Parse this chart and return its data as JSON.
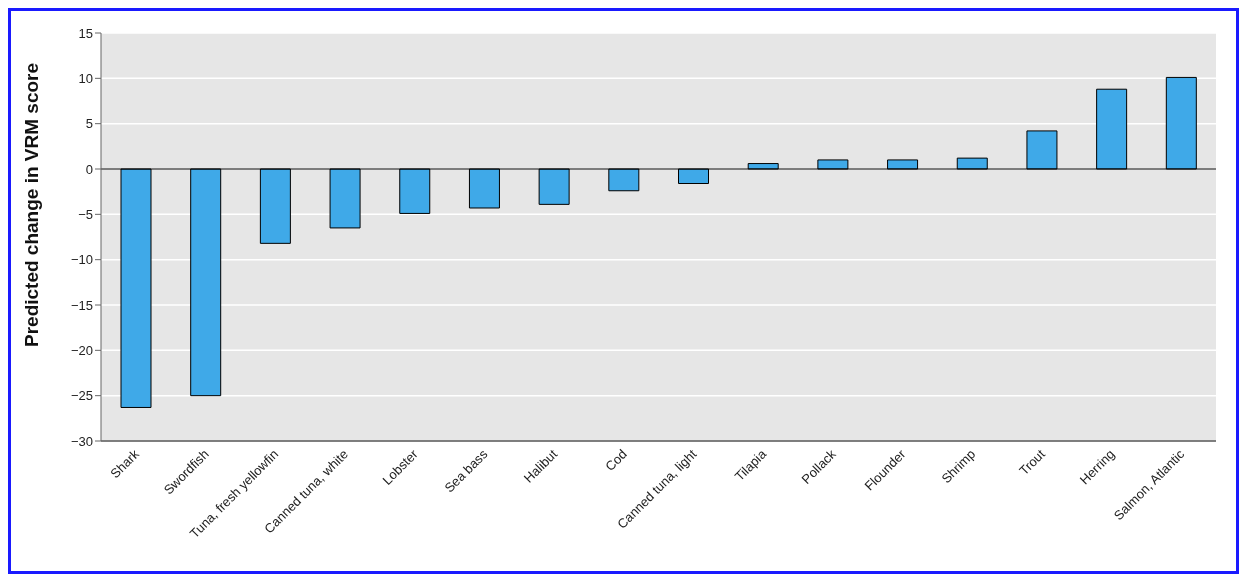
{
  "chart_data": {
    "type": "bar",
    "ylabel": "Predicted change in VRM score",
    "categories": [
      "Shark",
      "Swordfish",
      "Tuna, fresh yellowfin",
      "Canned tuna, white",
      "Lobster",
      "Sea bass",
      "Halibut",
      "Cod",
      "Canned tuna, light",
      "Tilapia",
      "Pollack",
      "Flounder",
      "Shrimp",
      "Trout",
      "Herring",
      "Salmon, Atlantic"
    ],
    "values": [
      -26.3,
      -25.0,
      -8.2,
      -6.5,
      -4.9,
      -4.3,
      -3.9,
      -2.4,
      -1.6,
      0.6,
      1.0,
      1.0,
      1.2,
      4.2,
      8.8,
      10.1
    ],
    "color": "#3fa9e8",
    "ylim": [
      -30,
      15
    ],
    "yticks": [
      -30,
      -25,
      -20,
      -15,
      -10,
      -5,
      0,
      5,
      10,
      15
    ],
    "grid": "y",
    "legend": false
  }
}
